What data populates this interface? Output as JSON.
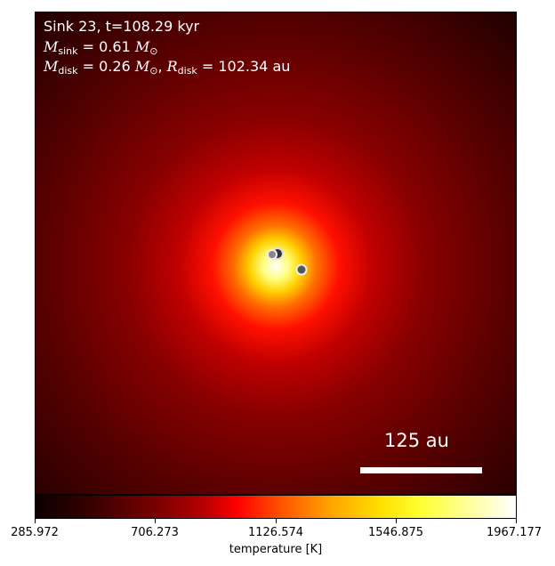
{
  "panel": {
    "line1": "Sink 23, t=108.29 kyr",
    "line2_value": "0.61",
    "line3_mdisk_value": "0.26",
    "line3_rdisk_value": "102.34",
    "unit_msun": "M",
    "unit_au": "au",
    "scale_label": "125 au"
  },
  "colorbar": {
    "label": "temperature [K]",
    "ticks": [
      "285.972",
      "706.273",
      "1126.574",
      "1546.875",
      "1967.177"
    ],
    "colormap": "hot"
  },
  "colors": {
    "background": "#4a0000",
    "core": "#ffffff"
  }
}
